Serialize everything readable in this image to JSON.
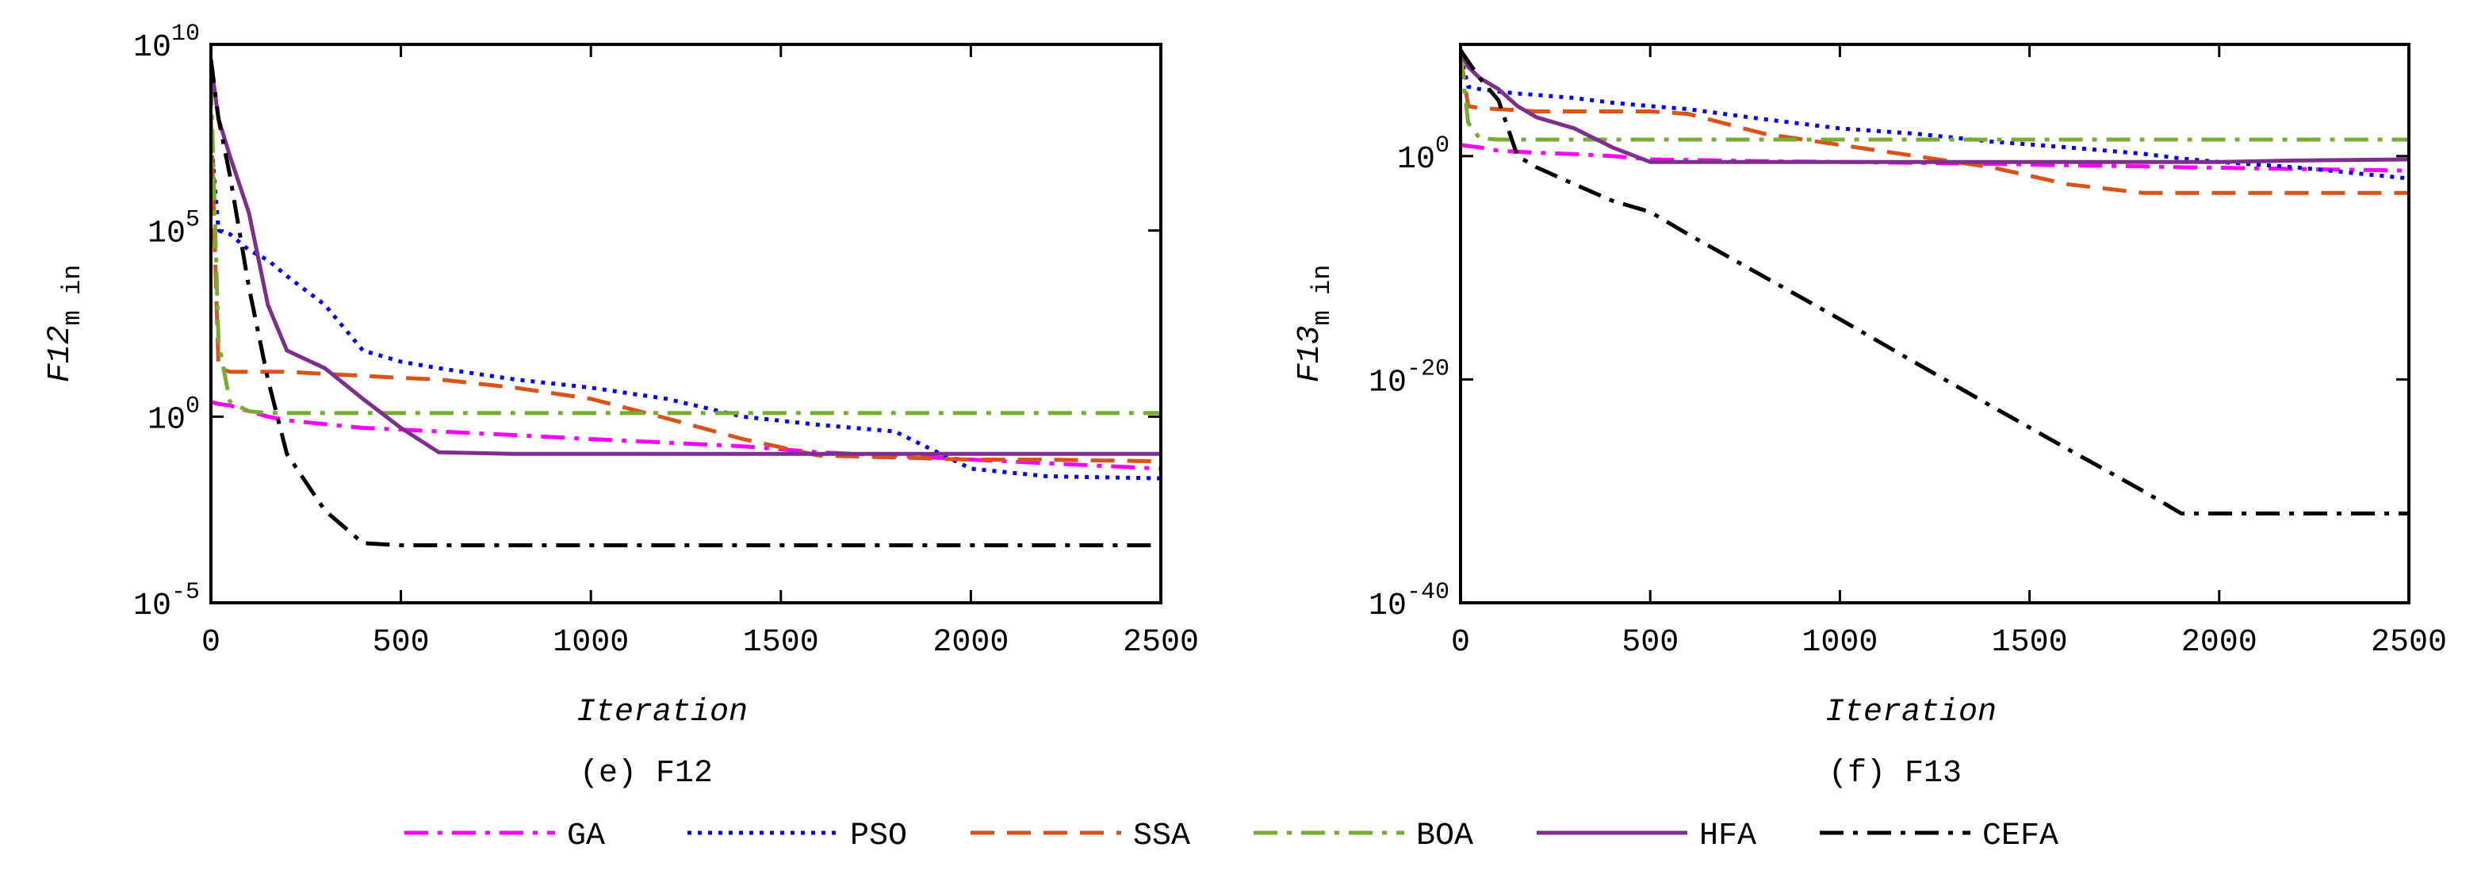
{
  "chart_data": [
    {
      "type": "line",
      "xlabel": "Iteration",
      "ylabel": "F12",
      "ylabel_sub": "m in",
      "caption": "(e) F12",
      "yscale": "log",
      "grid": false,
      "legend": "bottom",
      "xlim": [
        0,
        2500
      ],
      "xticks": [
        0,
        500,
        1000,
        1500,
        2000,
        2500
      ],
      "ylim": [
        1e-05,
        10000000000.0
      ],
      "yticks": [
        {
          "value": 1e-05,
          "label": "10^-5"
        },
        {
          "value": 1,
          "label": "10^0"
        },
        {
          "value": 100000.0,
          "label": "10^5"
        },
        {
          "value": 10000000000.0,
          "label": "10^10"
        }
      ],
      "x": [
        0,
        20,
        50,
        100,
        150,
        200,
        300,
        400,
        500,
        600,
        800,
        1000,
        1200,
        1400,
        1600,
        1800,
        2000,
        2200,
        2500
      ],
      "series": [
        {
          "name": "GA",
          "color": "#ff00ff",
          "dash": "dashdot",
          "values": [
            2.5,
            2.2,
            2,
            1.4,
            1,
            0.8,
            0.63,
            0.5,
            0.45,
            0.4,
            0.32,
            0.25,
            0.2,
            0.16,
            0.11,
            0.09,
            0.07,
            0.056,
            0.04
          ]
        },
        {
          "name": "PSO",
          "color": "#0000ff",
          "dash": "dotted",
          "values": [
            30000000.0,
            100000.0,
            80000.0,
            30000.0,
            16000.0,
            6000.0,
            1000.0,
            60,
            30,
            20,
            10,
            6,
            3,
            1,
            0.6,
            0.4,
            0.04,
            0.025,
            0.022
          ]
        },
        {
          "name": "SSA",
          "color": "#d95319",
          "dash": "dashed",
          "values": [
            100000000.0,
            20,
            16,
            16,
            16,
            16,
            14,
            12.6,
            11,
            10,
            6,
            3,
            0.9,
            0.25,
            0.09,
            0.08,
            0.07,
            0.07,
            0.063
          ]
        },
        {
          "name": "BOA",
          "color": "#77ac30",
          "dash": "dashdot",
          "values": [
            1000000000.0,
            100,
            2.5,
            1.4,
            1.25,
            1.25,
            1.25,
            1.25,
            1.25,
            1.25,
            1.25,
            1.25,
            1.25,
            1.25,
            1.25,
            1.25,
            1.25,
            1.25,
            1.25
          ]
        },
        {
          "name": "HFA",
          "color": "#7e2f8e",
          "dash": "solid",
          "values": [
            3000000000.0,
            100000000.0,
            10000000.0,
            300000.0,
            1000.0,
            60,
            20,
            3,
            0.5,
            0.11,
            0.1,
            0.1,
            0.1,
            0.1,
            0.1,
            0.1,
            0.1,
            0.1,
            0.1
          ]
        },
        {
          "name": "CEFA",
          "color": "#000000",
          "dash": "dashdot",
          "values": [
            4000000000.0,
            100000000.0,
            3000000.0,
            3000.0,
            10,
            0.1,
            0.003,
            0.0004,
            0.00035,
            0.00035,
            0.00035,
            0.00035,
            0.00035,
            0.00035,
            0.00035,
            0.00035,
            0.00035,
            0.00035,
            0.00035
          ]
        }
      ]
    },
    {
      "type": "line",
      "xlabel": "Iteration",
      "ylabel": "F13",
      "ylabel_sub": "m in",
      "caption": "(f) F13",
      "yscale": "log",
      "grid": false,
      "xlim": [
        0,
        2500
      ],
      "xticks": [
        0,
        500,
        1000,
        1500,
        2000,
        2500
      ],
      "ylim": [
        1e-40,
        10000000000.0
      ],
      "yticks": [
        {
          "value": 1e-40,
          "label": "10^-40"
        },
        {
          "value": 1e-20,
          "label": "10^-20"
        },
        {
          "value": 1,
          "label": "10^0"
        }
      ],
      "x": [
        0,
        20,
        50,
        100,
        150,
        200,
        300,
        400,
        500,
        600,
        800,
        1000,
        1200,
        1400,
        1600,
        1800,
        1900,
        2000,
        2200,
        2500
      ],
      "series": [
        {
          "color": "#ff00ff",
          "dash": "dashdot",
          "values": [
            10,
            8,
            6,
            3,
            2.5,
            2,
            1.5,
            1,
            0.5,
            0.45,
            0.35,
            0.3,
            0.25,
            0.2,
            0.15,
            0.12,
            0.1,
            0.09,
            0.07,
            0.05
          ]
        },
        {
          "color": "#0000ff",
          "dash": "dotted",
          "values": [
            1000000000.0,
            1600000.0,
            1000000.0,
            600000.0,
            400000.0,
            300000.0,
            160000.0,
            60000.0,
            30000.0,
            16000.0,
            2000.0,
            300,
            100,
            20,
            6,
            1.6,
            0.6,
            0.3,
            0.1,
            0.01
          ]
        },
        {
          "color": "#d95319",
          "dash": "dashed",
          "values": [
            1000000000.0,
            30000.0,
            20000.0,
            16000.0,
            13000.0,
            10000.0,
            10000.0,
            10000.0,
            10000.0,
            6000.0,
            100,
            10,
            1,
            0.1,
            0.003,
            0.0005,
            0.0005,
            0.0005,
            0.0005,
            0.0005
          ]
        },
        {
          "color": "#77ac30",
          "dash": "dashdot",
          "values": [
            1000000000.0,
            1000.0,
            40,
            30,
            30,
            30,
            30,
            30,
            30,
            30,
            30,
            30,
            30,
            30,
            30,
            30,
            30,
            30,
            30,
            30
          ]
        },
        {
          "color": "#7e2f8e",
          "dash": "solid",
          "values": [
            2000000000.0,
            100000000.0,
            10000000.0,
            1000000.0,
            30000.0,
            3000.0,
            300,
            6,
            0.3,
            0.3,
            0.3,
            0.3,
            0.3,
            0.3,
            0.3,
            0.3,
            0.3,
            0.3,
            0.4,
            0.5
          ]
        },
        {
          "color": "#000000",
          "dash": "dashdot",
          "values": [
            3000000000.0,
            300000000.0,
            10000000.0,
            100000.0,
            1,
            0.1,
            0.003,
            0.0001,
            1e-05,
            1e-07,
            1.6e-11,
            2.5e-15,
            3e-19,
            4e-23,
            6e-27,
            1e-30,
            1e-32,
            1e-32,
            1e-32,
            1e-32
          ]
        }
      ]
    }
  ]
}
